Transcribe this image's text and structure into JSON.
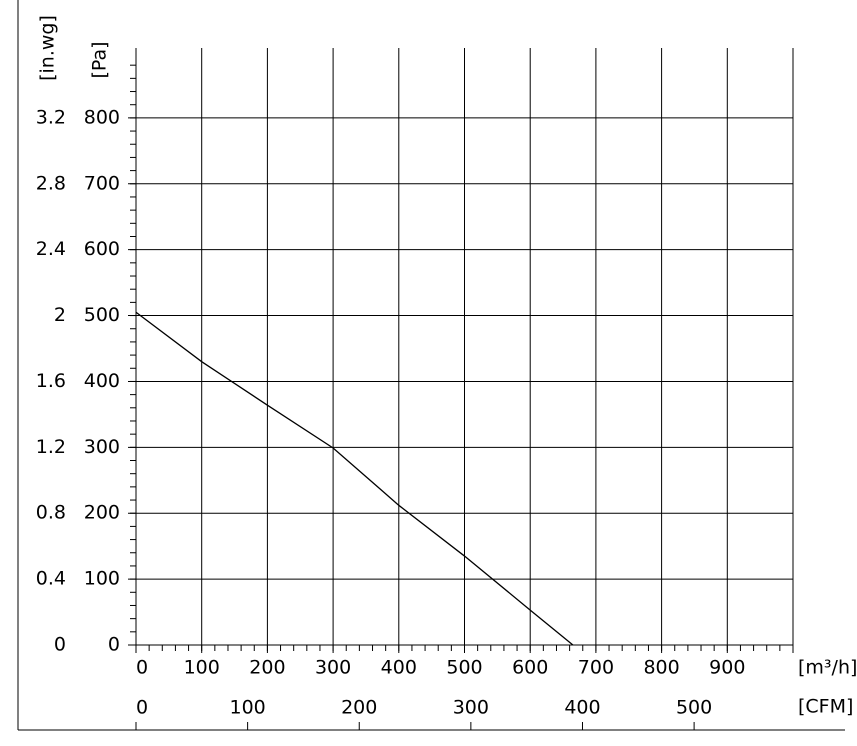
{
  "chart_data": {
    "type": "line",
    "x_label": "[m³/h]",
    "x2_label": "[CFM]",
    "y_label": "[Pa]",
    "y2_label": "[in.wg]",
    "x": [
      0,
      100,
      200,
      300,
      400,
      500,
      600,
      665
    ],
    "series": [
      {
        "color": "#000000",
        "values": [
          505,
          430,
          364,
          299,
          212,
          135,
          53,
          0
        ]
      }
    ],
    "xlim": [
      0,
      1000
    ],
    "xticks": [
      0,
      100,
      200,
      300,
      400,
      500,
      600,
      700,
      800,
      900
    ],
    "x2lim": [
      0,
      588.6
    ],
    "x2ticks": [
      0,
      100,
      200,
      300,
      400,
      500
    ],
    "ylim": [
      0,
      900
    ],
    "yticks": [
      0,
      100,
      200,
      300,
      400,
      500,
      600,
      700,
      800
    ],
    "y2lim": [
      0,
      3.6
    ],
    "y2ticks": [
      0,
      0.4,
      0.8,
      1.2,
      1.6,
      2.0,
      2.4,
      2.8,
      3.2
    ],
    "grid": true
  }
}
